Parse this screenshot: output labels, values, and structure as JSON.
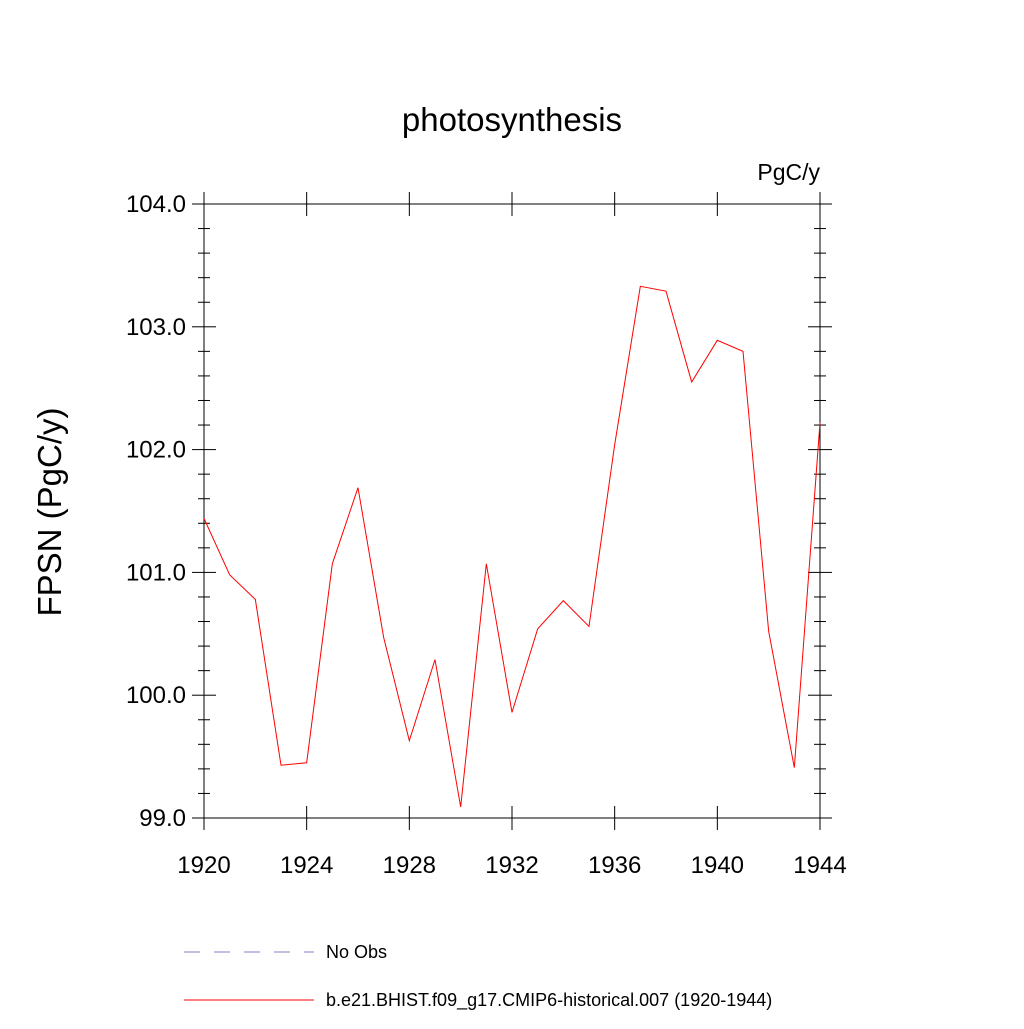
{
  "chart_data": {
    "type": "line",
    "title": "photosynthesis",
    "units_label": "PgC/y",
    "ylabel": "FPSN  (PgC/y)",
    "xlabel": "",
    "xlim": [
      1920,
      1944
    ],
    "ylim": [
      99.0,
      104.0
    ],
    "x_ticks": [
      1920,
      1924,
      1928,
      1932,
      1936,
      1940,
      1944
    ],
    "y_ticks": [
      "99.0",
      "100.0",
      "101.0",
      "102.0",
      "103.0",
      "104.0"
    ],
    "grid": false,
    "legend_position": "bottom",
    "x": [
      1920,
      1921,
      1922,
      1923,
      1924,
      1925,
      1926,
      1927,
      1928,
      1929,
      1930,
      1931,
      1932,
      1933,
      1934,
      1935,
      1936,
      1937,
      1938,
      1939,
      1940,
      1941,
      1942,
      1943,
      1944
    ],
    "series": [
      {
        "name": "b.e21.BHIST.f09_g17.CMIP6-historical.007 (1920-1944)",
        "color": "#ff0000",
        "style": "solid",
        "values": [
          101.44,
          100.98,
          100.78,
          99.43,
          99.45,
          101.07,
          101.69,
          100.47,
          99.63,
          100.29,
          99.09,
          101.07,
          99.86,
          100.54,
          100.77,
          100.56,
          102.04,
          103.33,
          103.29,
          102.55,
          102.89,
          102.8,
          100.52,
          99.41,
          102.22
        ]
      }
    ],
    "legend": [
      {
        "label": "No Obs",
        "color": "#8080c0",
        "style": "dashed"
      },
      {
        "label": "b.e21.BHIST.f09_g17.CMIP6-historical.007 (1920-1944)",
        "color": "#ff0000",
        "style": "solid"
      }
    ]
  }
}
